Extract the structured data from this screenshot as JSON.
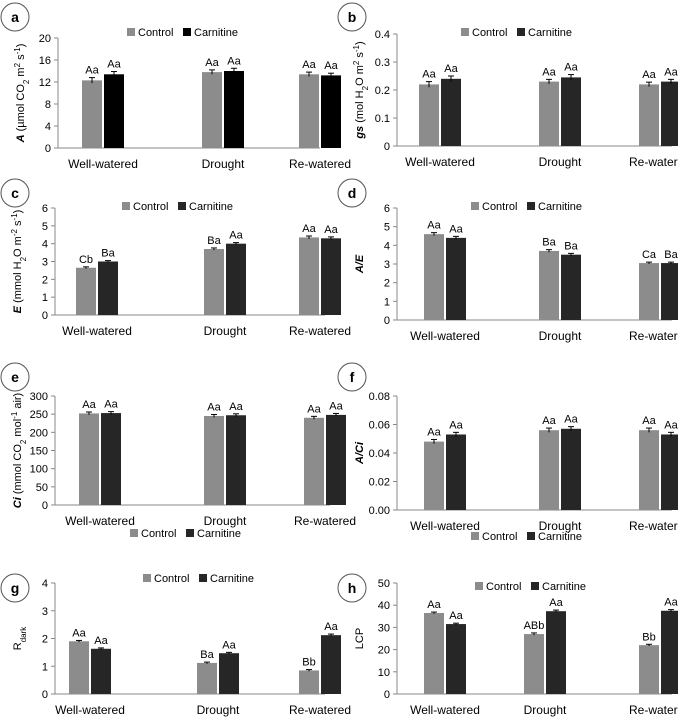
{
  "figure": {
    "legend_labels": {
      "control": "Control",
      "carnitine": "Carnitine"
    },
    "colors": {
      "control": "#8c8c8c",
      "carnitine_dark": "#262626",
      "carnitine_black": "#000000",
      "axis": "#888888",
      "text": "#000000",
      "badge_stroke": "#555555"
    }
  },
  "chart_data": [
    {
      "id": "a",
      "type": "bar",
      "panel_label": "a",
      "ylabel_italic": "A",
      "ylabel_text": " (µmol CO",
      "ylabel_sub": "2",
      "ylabel_text2": " m",
      "ylabel_sup": "2",
      "ylabel_text3": " s",
      "ylabel_sup2": "-1",
      "ylabel_text4": ")",
      "categories": [
        "Well-watered",
        "Drought",
        "Re-watered"
      ],
      "ylim": [
        0,
        20
      ],
      "yticks": [
        "0",
        "4",
        "8",
        "12",
        "16",
        "20"
      ],
      "series": [
        {
          "name": "Control",
          "values": [
            12.3,
            13.8,
            13.4
          ],
          "errors": [
            0.5,
            0.4,
            0.4
          ],
          "labels": [
            "Aa",
            "Aa",
            "Aa"
          ]
        },
        {
          "name": "Carnitine",
          "values": [
            13.4,
            14.0,
            13.2
          ],
          "errors": [
            0.5,
            0.5,
            0.4
          ],
          "labels": [
            "Aa",
            "Aa",
            "Aa"
          ]
        }
      ]
    },
    {
      "id": "b",
      "type": "bar",
      "panel_label": "b",
      "ylabel_italic": "gs",
      "ylabel_text": " (mol H",
      "ylabel_sub": "2",
      "ylabel_text2": "O m",
      "ylabel_sup": "2",
      "ylabel_text3": " s",
      "ylabel_sup2": "-1",
      "ylabel_text4": ")",
      "categories": [
        "Well-watered",
        "Drought",
        "Re-watered"
      ],
      "ylim": [
        0,
        0.4
      ],
      "yticks": [
        "0",
        "0.1",
        "0.2",
        "0.3",
        "0.4"
      ],
      "series": [
        {
          "name": "Control",
          "values": [
            0.22,
            0.23,
            0.22
          ],
          "errors": [
            0.01,
            0.008,
            0.008
          ],
          "labels": [
            "Aa",
            "Aa",
            "Aa"
          ]
        },
        {
          "name": "Carnitine",
          "values": [
            0.24,
            0.245,
            0.23
          ],
          "errors": [
            0.01,
            0.01,
            0.008
          ],
          "labels": [
            "Aa",
            "Aa",
            "Aa"
          ]
        }
      ]
    },
    {
      "id": "c",
      "type": "bar",
      "panel_label": "c",
      "ylabel_italic": "E",
      "ylabel_text": " (mmol H",
      "ylabel_sub": "2",
      "ylabel_text2": "O m",
      "ylabel_sup": "-2",
      "ylabel_text3": " s",
      "ylabel_sup2": "-1",
      "ylabel_text4": ")",
      "categories": [
        "Well-watered",
        "Drought",
        "Re-watered"
      ],
      "ylim": [
        0,
        6
      ],
      "yticks": [
        "0",
        "1",
        "2",
        "3",
        "4",
        "5",
        "6"
      ],
      "series": [
        {
          "name": "Control",
          "values": [
            2.65,
            3.7,
            4.35
          ],
          "errors": [
            0.05,
            0.06,
            0.08
          ],
          "labels": [
            "Cb",
            "Ba",
            "Aa"
          ]
        },
        {
          "name": "Carnitine",
          "values": [
            3.0,
            4.0,
            4.3
          ],
          "errors": [
            0.05,
            0.06,
            0.08
          ],
          "labels": [
            "Ba",
            "Aa",
            "Aa"
          ]
        }
      ]
    },
    {
      "id": "d",
      "type": "bar",
      "panel_label": "d",
      "ylabel_italic": "A/E",
      "ylabel_text": "",
      "ylabel_sub": "",
      "ylabel_text2": "",
      "ylabel_sup": "",
      "ylabel_text3": "",
      "ylabel_sup2": "",
      "ylabel_text4": "",
      "categories": [
        "Well-watered",
        "Drought",
        "Re-watered"
      ],
      "ylim": [
        0,
        6
      ],
      "yticks": [
        "0",
        "1",
        "2",
        "3",
        "4",
        "5",
        "6"
      ],
      "series": [
        {
          "name": "Control",
          "values": [
            4.6,
            3.7,
            3.05
          ],
          "errors": [
            0.08,
            0.07,
            0.05
          ],
          "labels": [
            "Aa",
            "Ba",
            "Ca"
          ]
        },
        {
          "name": "Carnitine",
          "values": [
            4.4,
            3.5,
            3.05
          ],
          "errors": [
            0.08,
            0.07,
            0.05
          ],
          "labels": [
            "Aa",
            "Ba",
            "Ba"
          ]
        }
      ]
    },
    {
      "id": "e",
      "type": "bar",
      "panel_label": "e",
      "ylabel_italic": "Ci",
      "ylabel_text": " (mmol CO",
      "ylabel_sub": "2",
      "ylabel_text2": " mol",
      "ylabel_sup": "-1",
      "ylabel_text3": " air)",
      "ylabel_sup2": "",
      "ylabel_text4": "",
      "categories": [
        "Well-watered",
        "Drought",
        "Re-watered"
      ],
      "ylim": [
        0,
        300
      ],
      "yticks": [
        "0",
        "50",
        "100",
        "150",
        "200",
        "250",
        "300"
      ],
      "series": [
        {
          "name": "Control",
          "values": [
            252,
            245,
            240
          ],
          "errors": [
            4,
            4,
            4
          ],
          "labels": [
            "Aa",
            "Aa",
            "Aa"
          ]
        },
        {
          "name": "Carnitine",
          "values": [
            253,
            247,
            248
          ],
          "errors": [
            4,
            4,
            4
          ],
          "labels": [
            "Aa",
            "Aa",
            "Aa"
          ]
        }
      ]
    },
    {
      "id": "f",
      "type": "bar",
      "panel_label": "f",
      "ylabel_italic": "A/Ci",
      "ylabel_text": "",
      "ylabel_sub": "",
      "ylabel_text2": "",
      "ylabel_sup": "",
      "ylabel_text3": "",
      "ylabel_sup2": "",
      "ylabel_text4": "",
      "categories": [
        "Well-watered",
        "Drought",
        "Re-watered"
      ],
      "ylim": [
        0,
        0.08
      ],
      "yticks": [
        "0.00",
        "0.02",
        "0.04",
        "0.06",
        "0.08"
      ],
      "series": [
        {
          "name": "Control",
          "values": [
            0.048,
            0.056,
            0.056
          ],
          "errors": [
            0.0015,
            0.0015,
            0.0015
          ],
          "labels": [
            "Aa",
            "Aa",
            "Aa"
          ]
        },
        {
          "name": "Carnitine",
          "values": [
            0.053,
            0.057,
            0.053
          ],
          "errors": [
            0.0015,
            0.0015,
            0.0015
          ],
          "labels": [
            "Aa",
            "Aa",
            "Aa"
          ]
        }
      ]
    },
    {
      "id": "g",
      "type": "bar",
      "panel_label": "g",
      "ylabel_italic": "",
      "ylabel_text": "R",
      "ylabel_sub": "dark",
      "ylabel_text2": "",
      "ylabel_sup": "",
      "ylabel_text3": "",
      "ylabel_sup2": "",
      "ylabel_text4": "",
      "categories": [
        "Well-watered",
        "Drought",
        "Re-watered"
      ],
      "ylim": [
        0,
        4
      ],
      "yticks": [
        "0",
        "1",
        "2",
        "3",
        "4"
      ],
      "series": [
        {
          "name": "Control",
          "values": [
            1.9,
            1.12,
            0.85
          ],
          "errors": [
            0.03,
            0.03,
            0.03
          ],
          "labels": [
            "Aa",
            "Ba",
            "Bb"
          ]
        },
        {
          "name": "Carnitine",
          "values": [
            1.63,
            1.47,
            2.12
          ],
          "errors": [
            0.03,
            0.03,
            0.04
          ],
          "labels": [
            "Aa",
            "Aa",
            "Aa"
          ]
        }
      ]
    },
    {
      "id": "h",
      "type": "bar",
      "panel_label": "h",
      "ylabel_italic": "",
      "ylabel_text": "LCP",
      "ylabel_sub": "",
      "ylabel_text2": "",
      "ylabel_sup": "",
      "ylabel_text3": "",
      "ylabel_sup2": "",
      "ylabel_text4": "",
      "categories": [
        "Well-watered",
        "Drought",
        "Re-watered"
      ],
      "ylim": [
        0,
        50
      ],
      "yticks": [
        "0",
        "10",
        "20",
        "30",
        "40",
        "50"
      ],
      "series": [
        {
          "name": "Control",
          "values": [
            36.5,
            27,
            22
          ],
          "errors": [
            0.4,
            0.5,
            0.4
          ],
          "labels": [
            "Aa",
            "ABb",
            "Bb"
          ]
        },
        {
          "name": "Carnitine",
          "values": [
            31.5,
            37.3,
            37.5
          ],
          "errors": [
            0.4,
            0.5,
            0.5
          ],
          "labels": [
            "Aa",
            "Aa",
            "Aa"
          ]
        }
      ]
    }
  ]
}
